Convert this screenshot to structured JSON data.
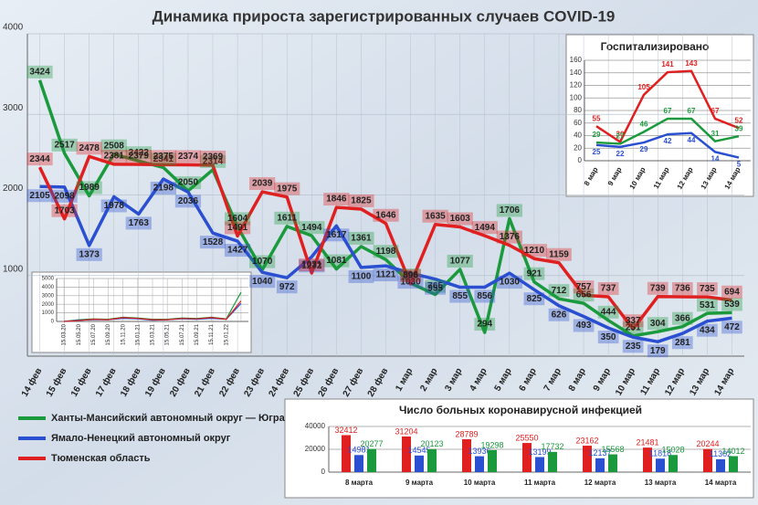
{
  "chart_data": [
    {
      "type": "line",
      "title": "Динамика прироста зарегистрированных случаев COVID-19",
      "categories": [
        "14 фев",
        "15 фев",
        "16 фев",
        "17 фев",
        "18 фев",
        "19 фев",
        "20 фев",
        "21 фев",
        "22 фев",
        "23 фев",
        "24 фев",
        "25 фев",
        "26 фев",
        "27 фев",
        "28 фев",
        "1 мар",
        "2 мар",
        "3 мар",
        "4 мар",
        "5 мар",
        "6 мар",
        "7 мар",
        "8 мар",
        "9 мар",
        "10 мар",
        "11 мар",
        "12 мар",
        "13 мар",
        "14 мар"
      ],
      "series": [
        {
          "name": "Ханты-Мансийский автономный округ — Югра",
          "color": "#1a9a3c",
          "values": [
            3424,
            2517,
            1989,
            2508,
            2422,
            2341,
            2050,
            2314,
            1604,
            1070,
            1611,
            1494,
            1081,
            1361,
            1198,
            906,
            765,
            1077,
            294,
            1706,
            921,
            712,
            656,
            444,
            251,
            304,
            366,
            531,
            539
          ]
        },
        {
          "name": "Ямало-Ненецкий автономный округ",
          "color": "#2a4fd0",
          "values": [
            2105,
            2098,
            1373,
            1978,
            1763,
            2198,
            2036,
            1528,
            1427,
            1040,
            972,
            1232,
            1617,
            1100,
            1121,
            1030,
            955,
            855,
            856,
            1030,
            825,
            626,
            493,
            350,
            235,
            179,
            281,
            434,
            472
          ]
        },
        {
          "name": "Тюменская область",
          "color": "#e02020",
          "values": [
            2344,
            1703,
            2478,
            2381,
            2379,
            2375,
            2374,
            2369,
            1491,
            2039,
            1975,
            1031,
            1846,
            1825,
            1646,
            896,
            1635,
            1603,
            1494,
            1376,
            1210,
            1159,
            757,
            737,
            337,
            739,
            736,
            735,
            694
          ]
        }
      ],
      "ylim": [
        0,
        4000
      ],
      "yticks": [
        1000,
        2000,
        3000,
        4000
      ],
      "grid": true
    },
    {
      "type": "line",
      "title": "Госпитализировано",
      "categories": [
        "8 мар",
        "9 мар",
        "10 мар",
        "11 мар",
        "12 мар",
        "13 мар",
        "14 мар"
      ],
      "series": [
        {
          "color": "#e02020",
          "values": [
            55,
            30,
            105,
            141,
            143,
            67,
            52
          ]
        },
        {
          "color": "#1a9a3c",
          "values": [
            29,
            27,
            46,
            67,
            67,
            31,
            39
          ]
        },
        {
          "color": "#2a4fd0",
          "values": [
            25,
            22,
            29,
            42,
            44,
            14,
            5
          ]
        }
      ],
      "ylim": [
        0,
        160
      ],
      "yticks": [
        0,
        20,
        40,
        60,
        80,
        100,
        120,
        140,
        160
      ],
      "grid": true
    },
    {
      "type": "bar",
      "title": "Число больных коронавирусной инфекцией",
      "categories": [
        "8 марта",
        "9 марта",
        "10 марта",
        "11 марта",
        "12 марта",
        "13 марта",
        "14 марта"
      ],
      "series": [
        {
          "color": "#e02020",
          "values": [
            32412,
            31204,
            28789,
            25550,
            23162,
            21481,
            20244
          ]
        },
        {
          "color": "#2a4fd0",
          "values": [
            14981,
            14545,
            13936,
            13199,
            12137,
            11818,
            11302
          ]
        },
        {
          "color": "#1a9a3c",
          "values": [
            20277,
            20123,
            19298,
            17732,
            15568,
            15028,
            14012
          ]
        }
      ],
      "ylim": [
        0,
        40000
      ],
      "yticks": [
        0,
        20000,
        40000
      ],
      "grid": true
    },
    {
      "type": "line",
      "categories": [
        "15.03.20",
        "15.05.20",
        "15.07.20",
        "15.09.20",
        "15.11.20",
        "15.01.21",
        "15.03.21",
        "15.05.21",
        "15.07.21",
        "15.09.21",
        "15.11.21",
        "15.01.22",
        null
      ],
      "series": [
        {
          "color": "#1a9a3c",
          "values": [
            0,
            200,
            300,
            250,
            500,
            400,
            250,
            250,
            400,
            350,
            500,
            300,
            3400
          ]
        },
        {
          "color": "#2a4fd0",
          "values": [
            0,
            150,
            200,
            200,
            350,
            300,
            150,
            200,
            300,
            250,
            350,
            250,
            2100
          ]
        },
        {
          "color": "#e02020",
          "values": [
            0,
            100,
            250,
            200,
            450,
            350,
            200,
            200,
            350,
            300,
            450,
            250,
            2400
          ]
        }
      ],
      "ylim": [
        0,
        5000
      ],
      "yticks": [
        0,
        1000,
        2000,
        3000,
        4000,
        5000
      ],
      "grid": true
    }
  ]
}
